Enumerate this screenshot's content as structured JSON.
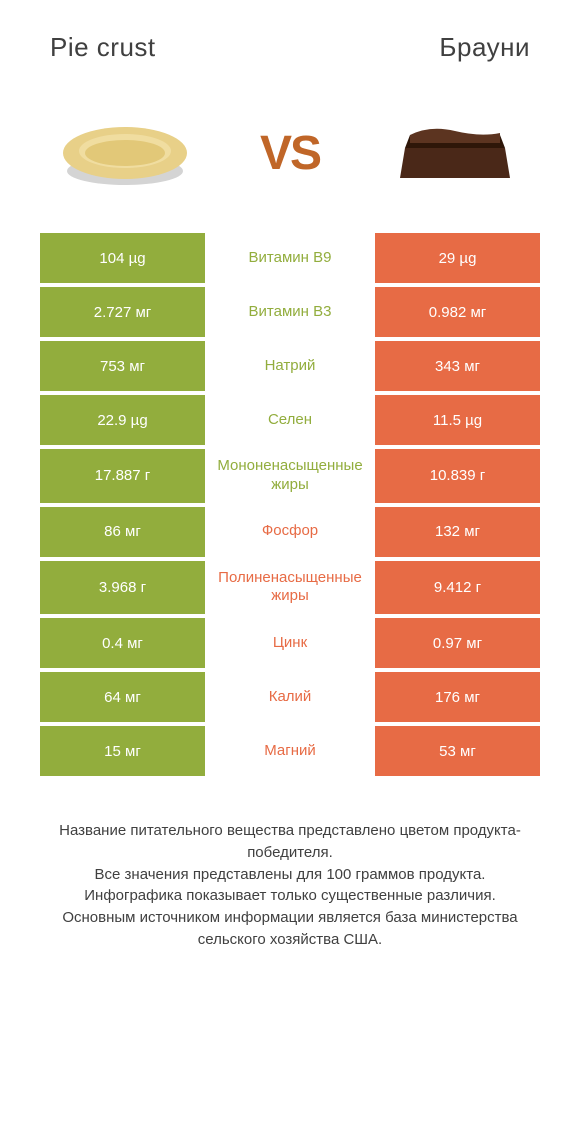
{
  "header": {
    "left_title": "Pie crust",
    "right_title": "Брауни"
  },
  "vs_label": "VS",
  "colors": {
    "left_bg": "#92ad3d",
    "right_bg": "#e76b45",
    "nutrient_left_text": "#92ad3d",
    "nutrient_right_text": "#e76b45",
    "vs_color": "#c06628"
  },
  "rows": [
    {
      "left": "104 µg",
      "nutrient": "Витамин B9",
      "right": "29 µg",
      "winner": "left"
    },
    {
      "left": "2.727 мг",
      "nutrient": "Витамин B3",
      "right": "0.982 мг",
      "winner": "left"
    },
    {
      "left": "753 мг",
      "nutrient": "Натрий",
      "right": "343 мг",
      "winner": "left"
    },
    {
      "left": "22.9 µg",
      "nutrient": "Селен",
      "right": "11.5 µg",
      "winner": "left"
    },
    {
      "left": "17.887 г",
      "nutrient": "Мононенасыщенные жиры",
      "right": "10.839 г",
      "winner": "left"
    },
    {
      "left": "86 мг",
      "nutrient": "Фосфор",
      "right": "132 мг",
      "winner": "right"
    },
    {
      "left": "3.968 г",
      "nutrient": "Полиненасыщенные жиры",
      "right": "9.412 г",
      "winner": "right"
    },
    {
      "left": "0.4 мг",
      "nutrient": "Цинк",
      "right": "0.97 мг",
      "winner": "right"
    },
    {
      "left": "64 мг",
      "nutrient": "Калий",
      "right": "176 мг",
      "winner": "right"
    },
    {
      "left": "15 мг",
      "nutrient": "Магний",
      "right": "53 мг",
      "winner": "right"
    }
  ],
  "footer": {
    "line1": "Название питательного вещества представлено цветом продукта-победителя.",
    "line2": "Все значения представлены для 100 граммов продукта.",
    "line3": "Инфографика показывает только существенные различия.",
    "line4": "Основным источником информации является база министерства сельского хозяйства США."
  }
}
